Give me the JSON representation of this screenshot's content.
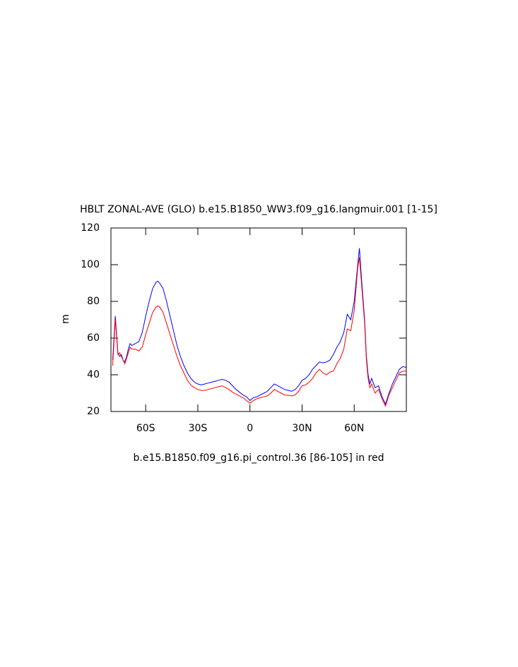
{
  "chart_data": {
    "type": "line",
    "title": "HBLT ZONAL-AVE (GLO) b.e15.B1850_WW3.f09_g16.langmuir.001 [1-15]",
    "subtitle": "b.e15.B1850.f09_g16.pi_control.36 [86-105] in red",
    "y_label": "m",
    "x": [
      -79,
      -77.5,
      -76,
      -75,
      -74,
      -73,
      -72,
      -71,
      -70,
      -69,
      -68,
      -66,
      -64,
      -62,
      -60,
      -58,
      -56,
      -54,
      -53,
      -52,
      -50,
      -48,
      -46,
      -44,
      -42,
      -40,
      -38,
      -36,
      -34,
      -32,
      -30,
      -28,
      -26,
      -24,
      -22,
      -20,
      -18,
      -16,
      -14,
      -12,
      -10,
      -8,
      -6,
      -4,
      -2,
      0,
      2,
      4,
      6,
      8,
      10,
      12,
      14,
      16,
      18,
      20,
      22,
      24,
      26,
      28,
      30,
      32,
      34,
      36,
      38,
      40,
      42,
      44,
      46,
      48,
      50,
      52,
      54,
      56,
      58,
      60,
      62,
      63,
      64,
      66,
      67,
      68,
      69,
      70,
      72,
      74,
      76,
      78,
      80,
      82,
      84,
      86,
      88,
      90
    ],
    "series": [
      {
        "color": "#0000ff",
        "values": [
          48,
          72,
          52,
          50,
          51,
          48,
          47,
          50,
          54,
          57,
          56,
          57,
          58,
          63,
          72,
          80,
          87,
          90.5,
          91,
          90,
          87,
          80,
          72,
          64,
          56,
          50,
          45,
          41,
          38,
          36,
          35,
          34.5,
          35,
          35.5,
          36,
          36.5,
          37,
          37.5,
          37,
          36,
          34,
          32,
          30.5,
          29,
          28,
          26,
          27.5,
          28,
          29,
          30,
          31,
          33,
          35,
          34,
          33,
          32,
          31.5,
          31,
          32,
          34,
          37,
          38,
          40,
          43,
          45,
          47,
          46.5,
          47,
          48,
          51,
          55,
          58,
          63,
          73,
          70,
          80,
          100,
          109,
          95,
          70,
          50,
          40,
          35,
          38,
          33,
          34,
          28,
          24,
          30,
          35,
          39,
          43,
          44.5,
          44
        ]
      },
      {
        "color": "#ff0000",
        "values": [
          45,
          70,
          51,
          52,
          50,
          48,
          46,
          49,
          52,
          55,
          54,
          54,
          53,
          55,
          62,
          68,
          74,
          77,
          77.5,
          77,
          74,
          68,
          62,
          56,
          50,
          45,
          41,
          37,
          34.5,
          33,
          32,
          31.5,
          31.5,
          32,
          32.5,
          33,
          33.5,
          34,
          33,
          32,
          30.5,
          29.5,
          28.5,
          27.5,
          26,
          24.5,
          26,
          27,
          27.5,
          28,
          28.5,
          30,
          32,
          31,
          30,
          29,
          28.8,
          28.5,
          29,
          31,
          34,
          34.5,
          36,
          38,
          41,
          43,
          41,
          40,
          41.5,
          42,
          46,
          49,
          54,
          65,
          64,
          75,
          98,
          104,
          92,
          68,
          48,
          38,
          33,
          35,
          30,
          32,
          27,
          23,
          29,
          33,
          37,
          41,
          42,
          42
        ]
      }
    ],
    "xlim": [
      -80,
      90
    ],
    "xticks": [
      {
        "value": -60,
        "label": "60S"
      },
      {
        "value": -30,
        "label": "30S"
      },
      0,
      {
        "value": 30,
        "label": "30N"
      },
      {
        "value": 60,
        "label": "60N"
      }
    ],
    "ylim": [
      20,
      120
    ],
    "yticks": [
      20,
      40,
      60,
      80,
      100,
      120
    ]
  }
}
